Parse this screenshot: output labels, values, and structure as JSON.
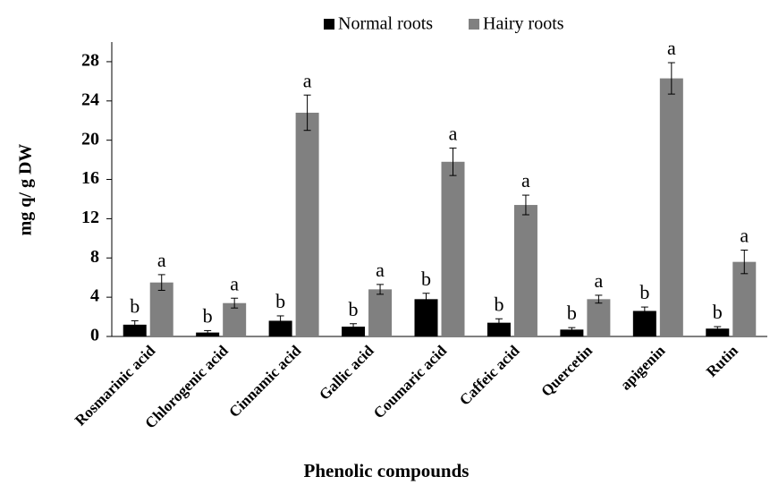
{
  "chart_data": {
    "type": "bar",
    "x_label": "Phenolic compounds",
    "y_label": "mg q/ g DW",
    "categories": [
      "Rosmarinic acid",
      "Chlorogenic acid",
      "Cinnamic acid",
      "Gallic acid",
      "Coumaric acid",
      "Caffeic acid",
      "Quercetin",
      "apigenin",
      "Rutin"
    ],
    "series": [
      {
        "name": "Normal roots",
        "color": "#000000",
        "values": [
          1.2,
          0.4,
          1.6,
          1.0,
          3.8,
          1.4,
          0.7,
          2.6,
          0.8
        ],
        "errors": [
          0.4,
          0.2,
          0.5,
          0.3,
          0.6,
          0.4,
          0.2,
          0.4,
          0.2
        ],
        "letters": [
          "b",
          "b",
          "b",
          "b",
          "b",
          "b",
          "b",
          "b",
          "b"
        ]
      },
      {
        "name": "Hairy roots",
        "color": "#808080",
        "values": [
          5.5,
          3.4,
          22.8,
          4.8,
          17.8,
          13.4,
          3.8,
          26.3,
          7.6
        ],
        "errors": [
          0.8,
          0.5,
          1.8,
          0.5,
          1.4,
          1.0,
          0.4,
          1.6,
          1.2
        ],
        "letters": [
          "a",
          "a",
          "a",
          "a",
          "a",
          "a",
          "a",
          "a",
          "a"
        ]
      }
    ],
    "ylim": [
      0,
      30
    ],
    "yticks": [
      0,
      4,
      8,
      12,
      16,
      20,
      24,
      28
    ],
    "legend": "top",
    "grid": false
  }
}
